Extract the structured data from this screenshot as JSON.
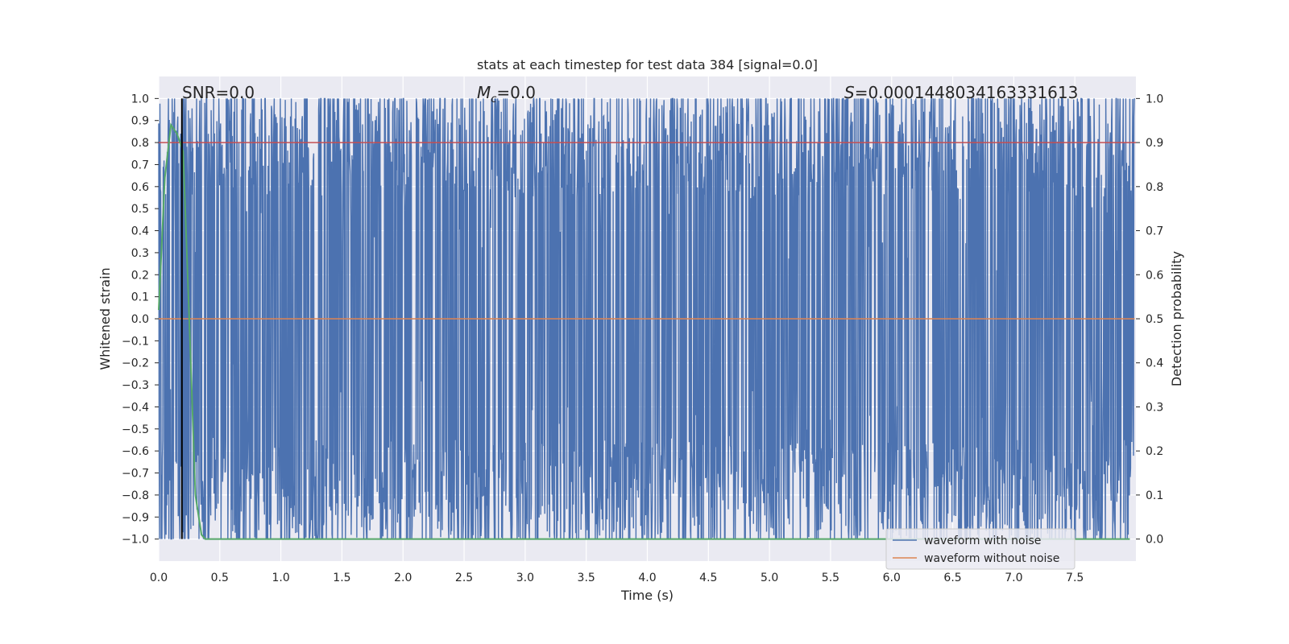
{
  "chart_data": {
    "type": "line",
    "title": "stats at each timestep for test data 384 [signal=0.0]",
    "xlabel": "Time (s)",
    "ylabel": "Whitened strain",
    "ylabel_right": "Detection probability",
    "xlim": [
      0.0,
      8.0
    ],
    "ylim": [
      -1.1,
      1.1
    ],
    "ylim_right": [
      -0.05,
      1.05
    ],
    "x_ticks": [
      "0.0",
      "0.5",
      "1.0",
      "1.5",
      "2.0",
      "2.5",
      "3.0",
      "3.5",
      "4.0",
      "4.5",
      "5.0",
      "5.5",
      "6.0",
      "6.5",
      "7.0",
      "7.5"
    ],
    "y_ticks": [
      "1.0",
      "0.9",
      "0.8",
      "0.7",
      "0.6",
      "0.5",
      "0.4",
      "0.3",
      "0.2",
      "0.1",
      "0.0",
      "−0.1",
      "−0.2",
      "−0.3",
      "−0.4",
      "−0.5",
      "−0.6",
      "−0.7",
      "−0.8",
      "−0.9",
      "−1.0"
    ],
    "y_ticks_right": [
      "1.0",
      "0.9",
      "0.8",
      "0.7",
      "0.6",
      "0.5",
      "0.4",
      "0.3",
      "0.2",
      "0.1",
      "0.0"
    ],
    "grid": true,
    "annotations": {
      "snr": "SNR=0.0",
      "mc_symbol": "M",
      "mc_sub": "c",
      "mc_value": "=0.0",
      "s_symbol": "S",
      "s_value": "=0.0001448034163331613"
    },
    "series": [
      {
        "name": "waveform with noise",
        "color": "#4c72b0",
        "description_range": [
          -1.0,
          1.0
        ],
        "noise_seed": 384
      },
      {
        "name": "waveform without noise",
        "color": "#dd8452",
        "x": [
          0.0,
          7.99
        ],
        "values": [
          0.0,
          0.0
        ]
      },
      {
        "color": "#55a868",
        "axis": "right",
        "x": [
          0.0,
          0.05,
          0.1,
          0.15,
          0.2,
          0.25,
          0.3,
          0.35,
          0.38,
          0.5,
          1.0,
          2.0,
          3.0,
          4.0,
          5.0,
          6.0,
          7.0,
          7.95
        ],
        "values": [
          0.52,
          0.82,
          0.94,
          0.92,
          0.88,
          0.5,
          0.1,
          0.01,
          0.0,
          0.0,
          0.0,
          0.0,
          0.0,
          0.0,
          0.0,
          0.0,
          0.0,
          0.0
        ]
      }
    ],
    "threshold_right": 0.9,
    "threshold_color": "#c44e52",
    "vline_x": 0.19,
    "vline_color": "#000000",
    "legend_position": "lower-right",
    "background": "#eaeaf2",
    "grid_color": "#ffffff"
  }
}
